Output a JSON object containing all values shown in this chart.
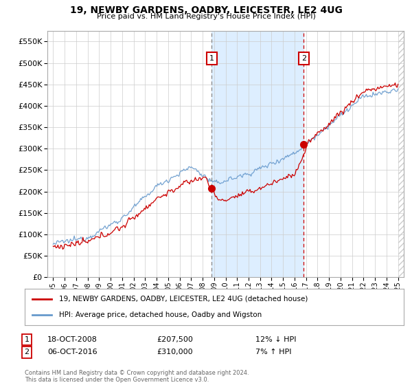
{
  "title": "19, NEWBY GARDENS, OADBY, LEICESTER, LE2 4UG",
  "subtitle": "Price paid vs. HM Land Registry's House Price Index (HPI)",
  "legend_line1": "19, NEWBY GARDENS, OADBY, LEICESTER, LE2 4UG (detached house)",
  "legend_line2": "HPI: Average price, detached house, Oadby and Wigston",
  "annotation1_date": "18-OCT-2008",
  "annotation1_price": "£207,500",
  "annotation1_hpi": "12% ↓ HPI",
  "annotation2_date": "06-OCT-2016",
  "annotation2_price": "£310,000",
  "annotation2_hpi": "7% ↑ HPI",
  "footnote": "Contains HM Land Registry data © Crown copyright and database right 2024.\nThis data is licensed under the Open Government Licence v3.0.",
  "vline1_x": 2008.8,
  "vline2_x": 2016.8,
  "marker1_x": 2008.8,
  "marker1_y": 207500,
  "marker2_x": 2016.8,
  "marker2_y": 310000,
  "ylim": [
    0,
    575000
  ],
  "xlim": [
    1994.5,
    2025.5
  ],
  "red_color": "#cc0000",
  "blue_color": "#6699cc",
  "shade_color": "#ddeeff",
  "background_color": "#ffffff",
  "grid_color": "#cccccc"
}
